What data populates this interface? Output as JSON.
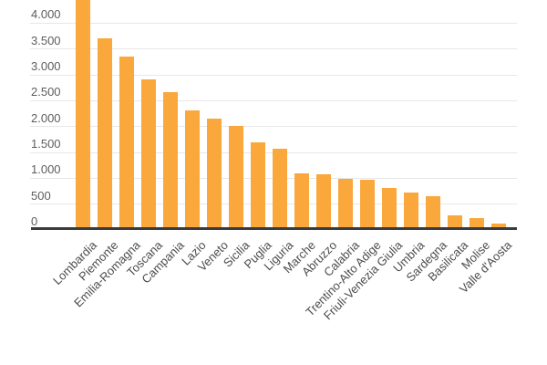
{
  "chart_data": {
    "type": "bar",
    "categories": [
      "Lombardia",
      "Piemonte",
      "Emilia-Romagna",
      "Toscana",
      "Campania",
      "Lazio",
      "Veneto",
      "Sicilia",
      "Puglia",
      "Liguria",
      "Marche",
      "Abruzzo",
      "Calabria",
      "Trentino-Alto Adige",
      "Friuli-Venezia Giulia",
      "Umbria",
      "Sardegna",
      "Basilicata",
      "Molise",
      "Valle d'Aosta"
    ],
    "values": [
      4450,
      3700,
      3350,
      2910,
      2670,
      2320,
      2160,
      2020,
      1700,
      1570,
      1090,
      1080,
      985,
      970,
      820,
      720,
      650,
      275,
      235,
      130
    ],
    "y_axis": {
      "tick_values": [
        0,
        500,
        1000,
        1500,
        2000,
        2500,
        3000,
        3500,
        4000
      ],
      "tick_labels": [
        "0",
        "500",
        "1.000",
        "1.500",
        "2.000",
        "2.500",
        "3.000",
        "3.500",
        "4.000"
      ]
    },
    "ylim": [
      0,
      4460
    ],
    "grid": true,
    "legend": "none",
    "clipped_top_category": "Lombardia"
  },
  "colors": {
    "bar": "#FAA73C",
    "gridline": "#E7E7E7",
    "axis_line": "#3B3B3B",
    "y_tick_label": "#5D5D5D",
    "x_category_label": "#4C4C4C",
    "background": "#FFFFFF"
  }
}
